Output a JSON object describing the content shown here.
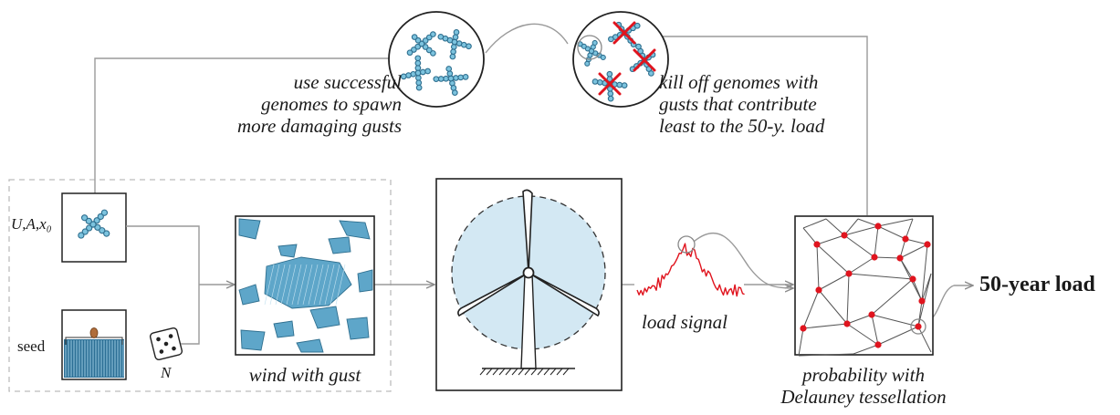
{
  "labels": {
    "use_genomes": [
      "use successful",
      "genomes to spawn",
      "more damaging gusts"
    ],
    "kill_genomes": [
      "kill off genomes with",
      "gusts that contribute",
      "least to the 50-y. load"
    ],
    "params": "U,A,x₀",
    "seed": "seed",
    "n": "N",
    "wind": "wind with gust",
    "load": "load signal",
    "probability": [
      "probability with",
      "Delauney tessellation"
    ],
    "result": "50-year load"
  },
  "icons": {
    "genome": "genome-icon",
    "dice": "dice-icon",
    "turbine": "wind-turbine-icon",
    "kill_mark": "cross-icon",
    "seed_shape": "seed-icon"
  },
  "colors": {
    "genome_fill": "#7cc3de",
    "genome_stroke": "#2f6f8f",
    "gust_fill": "#5ea6c9",
    "rotor_disc": "#d3e8f3",
    "load_signal": "#e0141e",
    "kill": "#e0141e",
    "point": "#e0141e",
    "arrow": "#9a9a9a",
    "frame": "#222222",
    "dashed_box": "#b8b8b8"
  }
}
